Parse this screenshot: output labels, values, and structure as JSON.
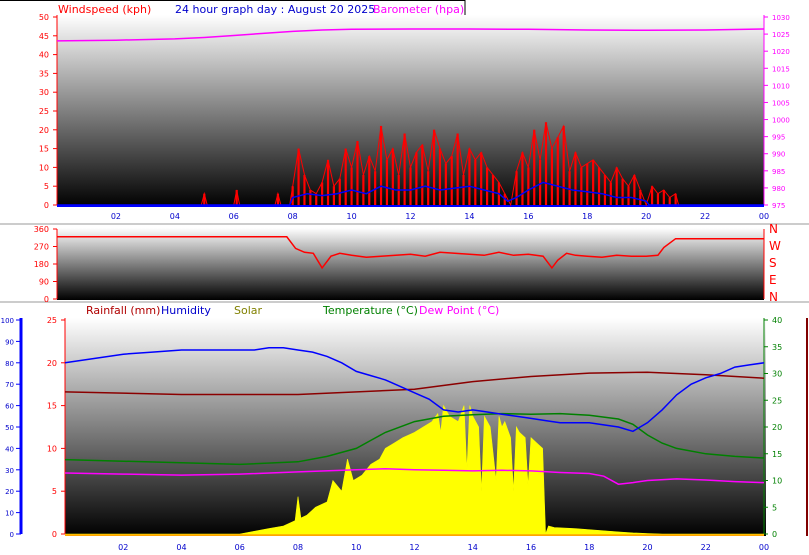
{
  "header": {
    "title": "24 hour graph day : August 20 2025",
    "left_label": "Windspeed (kph)",
    "right_label": "Barometer (hpa)"
  },
  "compass": [
    "N",
    "W",
    "S",
    "E",
    "N"
  ],
  "colors": {
    "windspeed": "#ff0000",
    "gust": "#ff0000",
    "average_wind": "#0000ff",
    "barometer": "#ff00ff",
    "direction": "#ff0000",
    "rainfall": "#8b0000",
    "rain_label": "#b00000",
    "humidity": "#0000ff",
    "humidity_axis": "#0000cc",
    "solar": "#ffff00",
    "solar_label": "#808000",
    "temperature": "#008000",
    "dew_point": "#ff00ff",
    "axis_text": "#ff0000"
  },
  "chart_data": [
    {
      "type": "line",
      "xlabel": "",
      "x_tick_labels": [
        "02",
        "04",
        "06",
        "08",
        "10",
        "12",
        "14",
        "16",
        "18",
        "20",
        "22",
        "00"
      ],
      "y_left": {
        "label": "Windspeed (kph)",
        "range": [
          0,
          50
        ],
        "ticks": [
          "0",
          "5",
          "10",
          "15",
          "20",
          "25",
          "30",
          "35",
          "40",
          "45",
          "50"
        ]
      },
      "y_right": {
        "label": "Barometer (hpa)",
        "range": [
          975,
          1030
        ],
        "ticks": [
          "975",
          "980",
          "985",
          "990",
          "995",
          "1000",
          "1005",
          "1010",
          "1015",
          "1020",
          "1025",
          "1030"
        ]
      },
      "series": [
        {
          "name": "Barometer (hpa)",
          "axis": "right",
          "x": [
            0,
            2,
            4,
            5,
            6,
            7,
            8,
            9,
            10,
            12,
            14,
            16,
            18,
            20,
            22,
            24
          ],
          "values": [
            1023.0,
            1023.2,
            1023.6,
            1024.0,
            1024.6,
            1025.2,
            1025.8,
            1026.2,
            1026.4,
            1026.5,
            1026.5,
            1026.4,
            1026.2,
            1026.1,
            1026.2,
            1026.5
          ]
        },
        {
          "axis": "left",
          "x": [
            0,
            4.9,
            5.0,
            5.1,
            6.0,
            6.1,
            6.2,
            7.4,
            7.5,
            7.6,
            7.9,
            8.0,
            8.2,
            8.4,
            8.6,
            8.8,
            9.0,
            9.2,
            9.4,
            9.6,
            9.8,
            10.0,
            10.2,
            10.4,
            10.6,
            10.8,
            11.0,
            11.2,
            11.4,
            11.6,
            11.8,
            12.0,
            12.2,
            12.4,
            12.6,
            12.8,
            13.0,
            13.2,
            13.4,
            13.6,
            13.8,
            14.0,
            14.2,
            14.4,
            14.6,
            14.8,
            15.0,
            15.2,
            15.4,
            15.6,
            15.8,
            16.0,
            16.2,
            16.4,
            16.6,
            16.8,
            17.0,
            17.2,
            17.4,
            17.6,
            17.8,
            18.0,
            18.2,
            18.4,
            18.6,
            18.8,
            19.0,
            19.2,
            19.4,
            19.6,
            19.8,
            20.0,
            20.2,
            20.4,
            20.6,
            20.8,
            21.0,
            21.1,
            24
          ],
          "values": [
            0,
            0,
            3,
            0,
            0,
            4,
            0,
            0,
            3,
            0,
            0,
            5,
            15,
            8,
            4,
            3,
            6,
            12,
            5,
            7,
            15,
            10,
            17,
            8,
            13,
            9,
            21,
            12,
            15,
            8,
            19,
            10,
            14,
            16,
            9,
            20,
            15,
            11,
            13,
            19,
            8,
            15,
            12,
            14,
            10,
            8,
            6,
            3,
            0,
            9,
            14,
            10,
            20,
            12,
            22,
            15,
            18,
            21,
            9,
            14,
            10,
            11,
            12,
            10,
            8,
            6,
            10,
            7,
            5,
            8,
            4,
            0,
            5,
            3,
            4,
            2,
            3,
            0,
            0
          ]
        },
        {
          "axis": "left",
          "x": [
            0,
            7.9,
            8.0,
            8.5,
            9.0,
            9.5,
            10.0,
            10.5,
            11.0,
            11.5,
            12.0,
            12.5,
            13.0,
            13.5,
            14.0,
            14.5,
            15.0,
            15.3,
            15.6,
            16.0,
            16.5,
            17.0,
            17.5,
            18.0,
            18.5,
            19.0,
            19.5,
            20.0,
            20.1,
            24
          ],
          "values": [
            0,
            0,
            2,
            3,
            2.5,
            3,
            4,
            3,
            5,
            4,
            4,
            5,
            4,
            4.5,
            5,
            4,
            3,
            1,
            2,
            4,
            6,
            5,
            4,
            3.5,
            3,
            2,
            2,
            1,
            0,
            0
          ]
        }
      ]
    },
    {
      "type": "line",
      "x_tick_labels": [],
      "y_left": {
        "label": "",
        "range": [
          0,
          360
        ],
        "ticks": [
          "0",
          "90",
          "180",
          "270",
          "360"
        ]
      },
      "series": [
        {
          "axis": "left",
          "x": [
            0,
            7.8,
            8.1,
            8.4,
            8.7,
            9.0,
            9.3,
            9.6,
            10.0,
            10.5,
            11.0,
            11.5,
            12.0,
            12.5,
            13.0,
            13.5,
            14.0,
            14.5,
            15.0,
            15.5,
            16.0,
            16.5,
            16.8,
            17.0,
            17.3,
            17.6,
            18.0,
            18.5,
            19.0,
            19.5,
            20.0,
            20.4,
            20.6,
            21.0,
            24
          ],
          "values": [
            320,
            320,
            260,
            240,
            235,
            160,
            220,
            235,
            225,
            215,
            220,
            225,
            230,
            220,
            240,
            235,
            230,
            225,
            240,
            225,
            230,
            220,
            160,
            200,
            235,
            225,
            220,
            215,
            225,
            220,
            220,
            225,
            265,
            310,
            310
          ]
        }
      ]
    },
    {
      "type": "area",
      "header_labels": [
        "Rainfall (mm)",
        "Humidity",
        "Solar",
        "Temperature (°C)",
        "Dew Point (°C)"
      ],
      "x_tick_labels": [
        "02",
        "04",
        "06",
        "08",
        "10",
        "12",
        "14",
        "16",
        "18",
        "20",
        "22",
        "00"
      ],
      "y_left": {
        "label": "Rainfall (mm)",
        "range": [
          0,
          25
        ],
        "ticks": [
          "0",
          "5",
          "10",
          "15",
          "20",
          "25"
        ]
      },
      "y_humidity": {
        "range": [
          0,
          100
        ],
        "ticks": [
          "0",
          "10",
          "20",
          "30",
          "40",
          "50",
          "60",
          "70",
          "80",
          "90",
          "100"
        ]
      },
      "y_right": {
        "label": "Temperature (°C)",
        "range": [
          0,
          40
        ],
        "ticks": [
          "0",
          "5",
          "10",
          "15",
          "20",
          "25",
          "30",
          "35",
          "40"
        ]
      },
      "series": [
        {
          "name": "Humidity",
          "axis": "humidity",
          "x": [
            0,
            1,
            2,
            3,
            4,
            5,
            6,
            6.5,
            7,
            7.5,
            8,
            8.5,
            9,
            9.5,
            10,
            10.5,
            11,
            11.5,
            12,
            12.5,
            13,
            13.5,
            14,
            14.5,
            15,
            15.5,
            16,
            16.5,
            17,
            17.5,
            18,
            18.5,
            19,
            19.5,
            20,
            20.5,
            21,
            21.5,
            22,
            22.5,
            23,
            23.5,
            24
          ],
          "values": [
            80,
            82,
            84,
            85,
            86,
            86,
            86,
            86,
            87,
            87,
            86,
            85,
            83,
            80,
            76,
            74,
            72,
            69,
            66,
            63,
            58,
            57,
            58,
            57,
            56,
            55,
            54,
            53,
            52,
            52,
            52,
            51,
            50,
            48,
            52,
            58,
            65,
            70,
            73,
            75,
            78,
            79,
            80
          ]
        },
        {
          "name": "Rainfall (mm)",
          "axis": "left",
          "x": [
            0,
            4,
            8,
            12,
            14,
            16,
            18,
            20,
            22,
            24
          ],
          "values": [
            16.6,
            16.3,
            16.3,
            16.9,
            17.8,
            18.4,
            18.8,
            18.9,
            18.6,
            18.2
          ]
        },
        {
          "name": "Temperature (°C)",
          "axis": "right",
          "x": [
            0,
            2,
            4,
            6,
            8,
            9,
            10,
            10.5,
            11,
            12,
            13,
            14,
            15,
            16,
            17,
            18,
            19,
            19.5,
            20,
            20.5,
            21,
            22,
            23,
            24
          ],
          "values": [
            13.9,
            13.6,
            13.3,
            13.0,
            13.5,
            14.5,
            16.0,
            17.5,
            19.0,
            21.0,
            22.0,
            22.3,
            22.5,
            22.4,
            22.5,
            22.2,
            21.5,
            20.5,
            18.5,
            17.0,
            16.0,
            15.0,
            14.5,
            14.2
          ]
        },
        {
          "name": "Dew Point (°C)",
          "axis": "right",
          "x": [
            0,
            2,
            4,
            6,
            8,
            10,
            11,
            12,
            13,
            14,
            15,
            16,
            17,
            18,
            18.5,
            19,
            19.5,
            20,
            21,
            22,
            23,
            24
          ],
          "values": [
            11.4,
            11.2,
            11.0,
            11.2,
            11.6,
            12.0,
            12.2,
            12.0,
            11.9,
            11.8,
            11.9,
            11.8,
            11.5,
            11.3,
            10.8,
            9.3,
            9.6,
            10.0,
            10.3,
            10.1,
            9.8,
            9.6
          ]
        },
        {
          "name": "Solar",
          "axis": "right",
          "x": [
            0,
            6.0,
            6.5,
            7.0,
            7.5,
            7.9,
            8.0,
            8.1,
            8.3,
            8.6,
            9.0,
            9.2,
            9.5,
            9.7,
            9.9,
            10.2,
            10.5,
            10.8,
            11.0,
            11.3,
            11.6,
            12.0,
            12.3,
            12.6,
            12.8,
            12.9,
            13.0,
            13.2,
            13.5,
            13.7,
            13.8,
            13.9,
            14.0,
            14.2,
            14.3,
            14.4,
            14.6,
            14.8,
            14.9,
            15.0,
            15.1,
            15.3,
            15.4,
            15.5,
            15.6,
            15.8,
            15.9,
            16.0,
            16.2,
            16.4,
            16.5,
            16.6,
            16.8,
            17.5,
            18.0,
            18.5,
            19.0,
            19.5,
            20.0,
            20.5,
            24
          ],
          "values": [
            0,
            0,
            0.5,
            1,
            1.5,
            2.5,
            7,
            3,
            3.5,
            5,
            6,
            10,
            8,
            14,
            10,
            11,
            13,
            14,
            16,
            17,
            18,
            19,
            20,
            21,
            22.5,
            19,
            24,
            22,
            21,
            24,
            12,
            24,
            22,
            20,
            8,
            22,
            20,
            10,
            22,
            20,
            21,
            18,
            8,
            20,
            19,
            18,
            9,
            18,
            17,
            16,
            0,
            1.5,
            1.2,
            1,
            0.8,
            0.6,
            0.4,
            0.2,
            0.1,
            0,
            0
          ]
        }
      ]
    }
  ]
}
